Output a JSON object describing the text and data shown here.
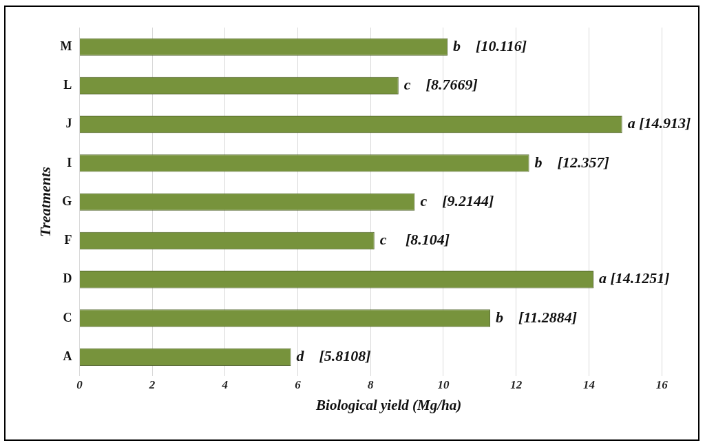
{
  "chart_data": {
    "type": "bar",
    "orientation": "horizontal",
    "categories": [
      "M",
      "L",
      "J",
      "I",
      "G",
      "F",
      "D",
      "C",
      "A"
    ],
    "values": [
      10.116,
      8.7669,
      14.913,
      12.357,
      9.2144,
      8.104,
      14.1251,
      11.2884,
      5.8108
    ],
    "value_labels": [
      "b    [10.116]",
      "c    [8.7669]",
      "a [14.913]",
      "b    [12.357]",
      "c    [9.2144]",
      "c     [8.104]",
      "a [14.1251]",
      "b    [11.2884]",
      "d    [5.8108]"
    ],
    "color": "#77933c",
    "xlim": [
      0,
      17
    ],
    "xticks": [
      0,
      2,
      4,
      6,
      8,
      10,
      12,
      14,
      16
    ],
    "xlabel": "Biological yield (Mg/ha)",
    "ylabel": "Treatments",
    "grid": "x",
    "legend": false
  }
}
